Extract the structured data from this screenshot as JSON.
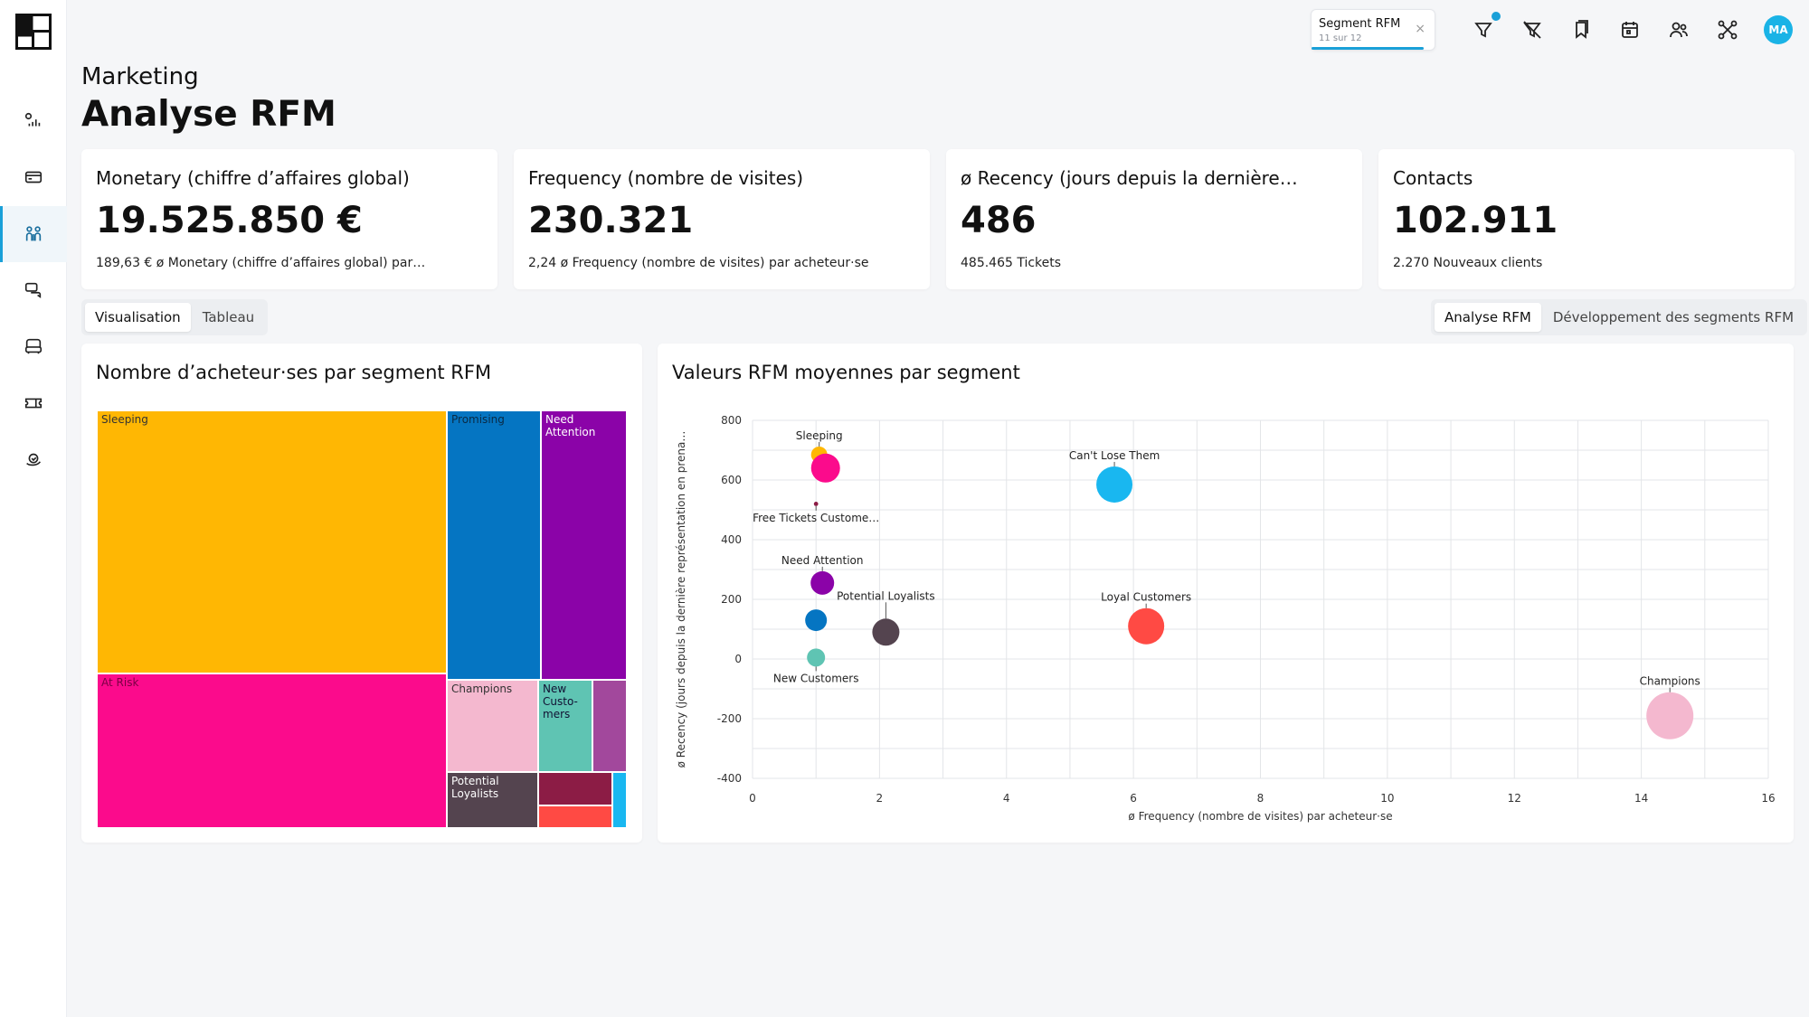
{
  "header": {
    "section": "Marketing",
    "title": "Analyse RFM"
  },
  "topbar": {
    "segment_tab": {
      "title": "Segment RFM",
      "subtitle": "11 sur 12",
      "close": "×",
      "progress": 0.917
    },
    "icons": [
      "filter-icon",
      "filter-off-icon",
      "bookmark-icon",
      "calendar-icon",
      "users-icon",
      "share-icon"
    ],
    "avatar": "MA",
    "accent": "#1aa0d8"
  },
  "sidebar": {
    "icons": [
      "analytics-icon",
      "card-icon",
      "people-icon",
      "chat-icon",
      "inbox-icon",
      "ticket-icon",
      "loyalty-icon"
    ],
    "active_index": 2
  },
  "kpis": [
    {
      "label": "Monetary (chiffre d’affaires global)",
      "value": "19.525.850 €",
      "sub": "189,63 € ø Monetary (chiffre d’affaires global) par…"
    },
    {
      "label": "Frequency (nombre de visites)",
      "value": "230.321",
      "sub": "2,24 ø Frequency (nombre de visites) par acheteur·se"
    },
    {
      "label": "ø Recency (jours depuis la dernière…",
      "value": "486",
      "sub": "485.465 Tickets"
    },
    {
      "label": "Contacts",
      "value": "102.911",
      "sub": "2.270 Nouveaux clients"
    }
  ],
  "view_toggle": {
    "options": [
      "Visualisation",
      "Tableau"
    ],
    "active": 0
  },
  "analysis_toggle": {
    "options": [
      "Analyse RFM",
      "Développement des segments RFM"
    ],
    "active": 0
  },
  "treemap": {
    "title": "Nombre d’acheteur·ses par segment RFM",
    "cells": [
      {
        "label": "Sleeping",
        "color": "#ffb703",
        "text_color": "#333"
      },
      {
        "label": "At Risk",
        "color": "#fb0b8c",
        "text_color": "#7a0044"
      },
      {
        "label": "Promising",
        "color": "#0575c2",
        "text_color": "#0a2a44"
      },
      {
        "label": "Need Attention",
        "color": "#8b03a8",
        "text_color": "#ffffff"
      },
      {
        "label": "Champions",
        "color": "#f4b8cf",
        "text_color": "#333"
      },
      {
        "label": "New Custo-mers",
        "color": "#5fc4b3",
        "text_color": "#113"
      },
      {
        "label": "",
        "color": "#a2489c",
        "text_color": "#fff"
      },
      {
        "label": "Potential Loyalists",
        "color": "#54444f",
        "text_color": "#ffffff"
      },
      {
        "label": "",
        "color": "#8c1c45",
        "text_color": "#fff"
      },
      {
        "label": "",
        "color": "#ff4a44",
        "text_color": "#fff"
      },
      {
        "label": "",
        "color": "#19b7f0",
        "text_color": "#fff"
      }
    ]
  },
  "chart_data": {
    "type": "scatter",
    "title": "Valeurs RFM moyennes par segment",
    "xlabel": "ø Frequency (nombre de visites) par acheteur·se",
    "ylabel": "ø Recency (jours depuis la dernière représentation en prena…",
    "xlim": [
      0,
      16
    ],
    "ylim": [
      -400,
      800
    ],
    "xticks": [
      0,
      2,
      4,
      6,
      8,
      10,
      12,
      14,
      16
    ],
    "yticks": [
      -400,
      -200,
      0,
      200,
      400,
      600,
      800
    ],
    "grid": true,
    "points": [
      {
        "name": "Sleeping",
        "x": 1.05,
        "y": 685,
        "size": 4.5,
        "color": "#ffb703",
        "label_pos": "above"
      },
      {
        "name": "At Risk",
        "x": 1.15,
        "y": 640,
        "size": 8,
        "color": "#fb0b8c",
        "label_pos": "none"
      },
      {
        "name": "Free Tickets Custome…",
        "x": 1.0,
        "y": 520,
        "size": 1.2,
        "color": "#8c1c45",
        "label_pos": "below"
      },
      {
        "name": "Can't Lose Them",
        "x": 5.7,
        "y": 585,
        "size": 10,
        "color": "#19b7f0",
        "label_pos": "above"
      },
      {
        "name": "Need Attention",
        "x": 1.1,
        "y": 255,
        "size": 6.5,
        "color": "#8b03a8",
        "label_pos": "above"
      },
      {
        "name": "Promising",
        "x": 1.0,
        "y": 130,
        "size": 6,
        "color": "#0575c2",
        "label_pos": "none"
      },
      {
        "name": "Potential Loyalists",
        "x": 2.1,
        "y": 90,
        "size": 7.5,
        "color": "#54444f",
        "label_pos": "above-right"
      },
      {
        "name": "New Customers",
        "x": 1.0,
        "y": 5,
        "size": 5,
        "color": "#5fc4b3",
        "label_pos": "below"
      },
      {
        "name": "Loyal Customers",
        "x": 6.2,
        "y": 110,
        "size": 10,
        "color": "#ff4a44",
        "label_pos": "above"
      },
      {
        "name": "Champions",
        "x": 14.45,
        "y": -190,
        "size": 13,
        "color": "#f4b8cf",
        "label_pos": "above"
      }
    ]
  }
}
